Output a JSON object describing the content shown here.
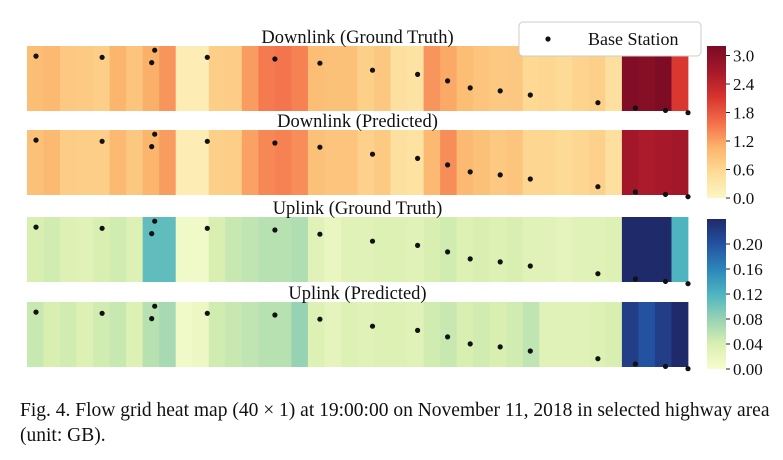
{
  "caption": "Fig. 4.  Flow grid heat map (40 × 1) at 19:00:00 on November 11, 2018 in selected highway area (unit: GB).",
  "legend": {
    "label": "Base Station",
    "marker_color": "#111111"
  },
  "colormaps": {
    "downlink": [
      "#fdf6c3",
      "#fddc98",
      "#fcb46b",
      "#f36d4a",
      "#d7332e",
      "#a5182a",
      "#7a0b25"
    ],
    "uplink": [
      "#f8fcd0",
      "#d9efb1",
      "#96d3b3",
      "#4eb4c0",
      "#2b86b9",
      "#2352a1",
      "#1f2a6b"
    ]
  },
  "base_stations": [
    {
      "col": 0.6,
      "pos": 0.12
    },
    {
      "col": 5.0,
      "pos": 0.14
    },
    {
      "col": 8.3,
      "pos": 0.23
    },
    {
      "col": 8.5,
      "pos": 0.02
    },
    {
      "col": 12.0,
      "pos": 0.14
    },
    {
      "col": 16.5,
      "pos": 0.17
    },
    {
      "col": 19.5,
      "pos": 0.24
    },
    {
      "col": 23.0,
      "pos": 0.36
    },
    {
      "col": 26.0,
      "pos": 0.43
    },
    {
      "col": 28.0,
      "pos": 0.54
    },
    {
      "col": 29.5,
      "pos": 0.66
    },
    {
      "col": 31.5,
      "pos": 0.71
    },
    {
      "col": 33.5,
      "pos": 0.78
    },
    {
      "col": 38.0,
      "pos": 0.91
    },
    {
      "col": 40.5,
      "pos": 1.0
    },
    {
      "col": 42.5,
      "pos": 1.04
    },
    {
      "col": 44.0,
      "pos": 1.08
    }
  ],
  "chart_data": [
    {
      "type": "heatmap",
      "title": "Downlink (Ground Truth)",
      "colorbar": "downlink",
      "vmin": 0,
      "vmax": 3.2,
      "values": [
        0.95,
        1.0,
        0.8,
        0.78,
        0.72,
        1.05,
        0.85,
        1.1,
        1.3,
        0.2,
        0.18,
        0.72,
        0.75,
        1.25,
        1.5,
        1.55,
        1.45,
        0.95,
        0.9,
        0.9,
        0.7,
        0.82,
        0.45,
        0.4,
        1.3,
        1.15,
        0.95,
        0.85,
        0.8,
        0.82,
        0.58,
        0.6,
        0.55,
        0.65,
        0.7,
        0.45,
        3.1,
        3.05,
        3.15,
        2.1
      ]
    },
    {
      "type": "heatmap",
      "title": "Downlink (Predicted)",
      "colorbar": "downlink",
      "vmin": 0,
      "vmax": 3.2,
      "values": [
        0.9,
        1.0,
        0.75,
        0.72,
        0.72,
        1.0,
        0.82,
        1.05,
        1.25,
        0.2,
        0.2,
        0.7,
        0.72,
        1.2,
        1.4,
        1.45,
        1.35,
        0.9,
        0.85,
        0.85,
        0.68,
        0.78,
        0.45,
        0.42,
        1.0,
        1.35,
        1.0,
        0.9,
        0.8,
        0.85,
        0.62,
        0.6,
        0.55,
        0.62,
        0.68,
        0.45,
        2.7,
        2.6,
        2.65,
        2.7
      ]
    },
    {
      "type": "heatmap",
      "title": "Uplink (Ground Truth)",
      "colorbar": "uplink",
      "vmin": 0,
      "vmax": 0.24,
      "values": [
        0.04,
        0.045,
        0.035,
        0.03,
        0.04,
        0.045,
        0.035,
        0.11,
        0.11,
        0.01,
        0.01,
        0.04,
        0.05,
        0.055,
        0.06,
        0.06,
        0.065,
        0.03,
        0.02,
        0.03,
        0.03,
        0.035,
        0.035,
        0.03,
        0.04,
        0.045,
        0.035,
        0.04,
        0.035,
        0.04,
        0.03,
        0.03,
        0.025,
        0.03,
        0.03,
        0.035,
        0.25,
        0.25,
        0.25,
        0.12
      ]
    },
    {
      "type": "heatmap",
      "title": "Uplink (Predicted)",
      "colorbar": "uplink",
      "vmin": 0,
      "vmax": 0.24,
      "values": [
        0.05,
        0.04,
        0.045,
        0.035,
        0.045,
        0.05,
        0.035,
        0.06,
        0.07,
        0.01,
        0.015,
        0.045,
        0.05,
        0.055,
        0.06,
        0.06,
        0.08,
        0.035,
        0.025,
        0.035,
        0.03,
        0.035,
        0.035,
        0.03,
        0.045,
        0.05,
        0.04,
        0.045,
        0.04,
        0.045,
        0.055,
        0.03,
        0.03,
        0.03,
        0.035,
        0.04,
        0.22,
        0.2,
        0.22,
        0.24
      ]
    }
  ],
  "colorbars": [
    {
      "name": "downlink",
      "ticks": [
        "3.0",
        "2.4",
        "1.8",
        "1.2",
        "0.6",
        "0.0"
      ],
      "tick_values": [
        3.0,
        2.4,
        1.8,
        1.2,
        0.6,
        0.0
      ],
      "vmin": 0,
      "vmax": 3.2
    },
    {
      "name": "uplink",
      "ticks": [
        "0.20",
        "0.16",
        "0.12",
        "0.08",
        "0.04",
        "0.00"
      ],
      "tick_values": [
        0.2,
        0.16,
        0.12,
        0.08,
        0.04,
        0.0
      ],
      "vmin": 0,
      "vmax": 0.24
    }
  ]
}
